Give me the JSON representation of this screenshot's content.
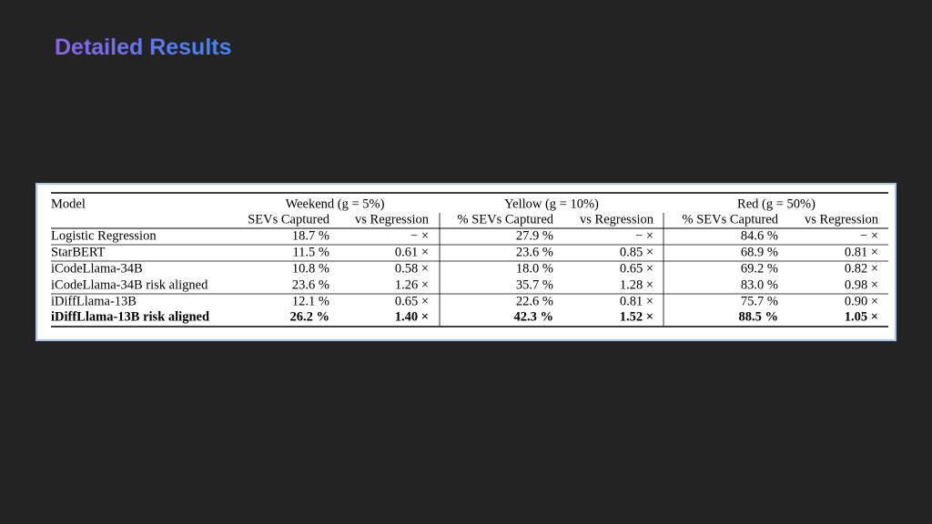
{
  "title": "Detailed Results",
  "table": {
    "model_header": "Model",
    "groups": [
      "Weekend (g = 5%)",
      "Yellow (g = 10%)",
      "Red (g = 50%)"
    ],
    "subheaders": [
      "SEVs Captured",
      "vs Regression",
      "% SEVs Captured",
      "vs Regression",
      "% SEVs Captured",
      "vs Regression"
    ],
    "rows": [
      [
        "Logistic Regression",
        "18.7 %",
        "− ×",
        "27.9 %",
        "− ×",
        "84.6 %",
        "− ×"
      ],
      [
        "StarBERT",
        "11.5 %",
        "0.61 ×",
        "23.6 %",
        "0.85 ×",
        "68.9 %",
        "0.81 ×"
      ],
      [
        "iCodeLlama-34B",
        "10.8 %",
        "0.58 ×",
        "18.0 %",
        "0.65 ×",
        "69.2 %",
        "0.82 ×"
      ],
      [
        "iCodeLlama-34B risk aligned",
        "23.6 %",
        "1.26 ×",
        "35.7 %",
        "1.28 ×",
        "83.0 %",
        "0.98 ×"
      ],
      [
        "iDiffLlama-13B",
        "12.1 %",
        "0.65 ×",
        "22.6 %",
        "0.81 ×",
        "75.7 %",
        "0.90 ×"
      ],
      [
        "iDiffLlama-13B risk aligned",
        "26.2 %",
        "1.40 ×",
        "42.3 %",
        "1.52 ×",
        "88.5 %",
        "1.05 ×"
      ]
    ]
  }
}
